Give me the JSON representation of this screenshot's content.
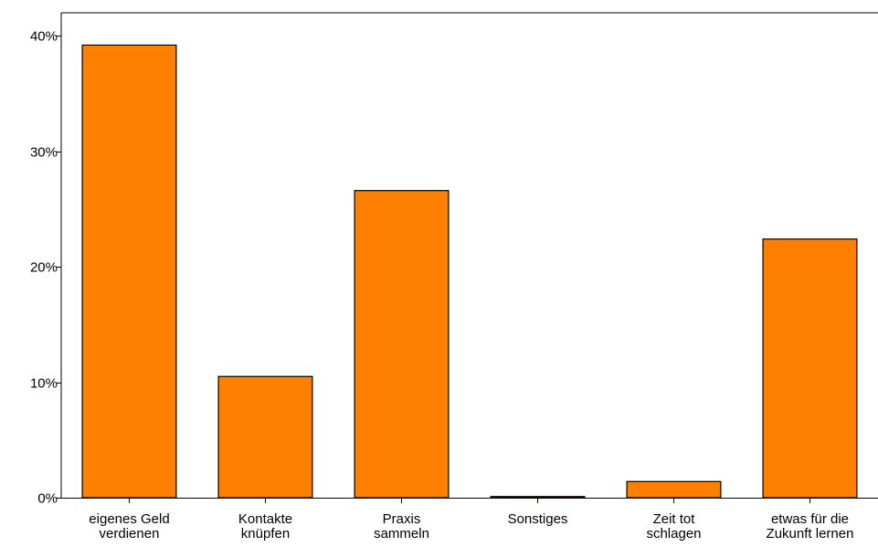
{
  "chart_data": {
    "type": "bar",
    "categories": [
      [
        "eigenes Geld",
        "verdienen"
      ],
      [
        "Kontakte",
        "knüpfen"
      ],
      [
        "Praxis",
        "sammeln"
      ],
      [
        "Sonstiges"
      ],
      [
        "Zeit tot",
        "schlagen"
      ],
      [
        "etwas für die",
        "Zukunft lernen"
      ]
    ],
    "values": [
      39.2,
      10.5,
      26.6,
      0.1,
      1.4,
      22.4
    ],
    "ylim": [
      0,
      42
    ],
    "yticks": [
      0,
      10,
      20,
      30,
      40
    ],
    "ytick_labels": [
      "0%",
      "10%",
      "20%",
      "30%",
      "40%"
    ],
    "bar_color": "#ff7f00",
    "bar_edge_color": "#000000",
    "grid": false,
    "title": "",
    "xlabel": "",
    "ylabel": ""
  }
}
